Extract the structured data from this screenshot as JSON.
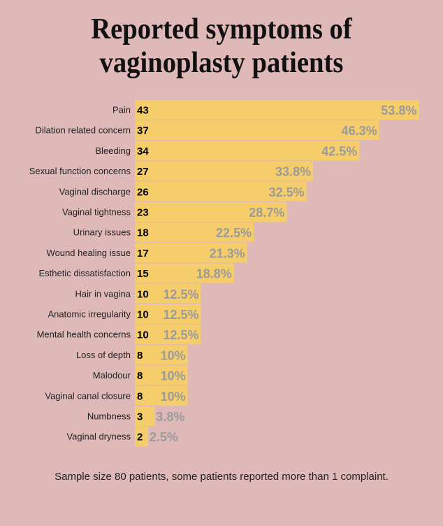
{
  "title_lines": [
    "Reported symptoms of",
    "vaginoplasty patients"
  ],
  "footnote": "Sample size 80 patients, some patients reported more than 1 complaint.",
  "colors": {
    "background": "#dfb8b8",
    "bar": "#f5cd6b",
    "percent_text": "#9b9b9b"
  },
  "chart_data": {
    "type": "bar",
    "orientation": "horizontal",
    "title": "Reported symptoms of vaginoplasty patients",
    "categories": [
      "Pain",
      "Dilation related concern",
      "Bleeding",
      "Sexual function concerns",
      "Vaginal discharge",
      "Vaginal tightness",
      "Urinary issues",
      "Wound healing issue",
      "Esthetic dissatisfaction",
      "Hair in vagina",
      "Anatomic irregularity",
      "Mental health concerns",
      "Loss of depth",
      "Malodour",
      "Vaginal canal closure",
      "Numbness",
      "Vaginal dryness"
    ],
    "counts": [
      43,
      37,
      34,
      27,
      26,
      23,
      18,
      17,
      15,
      10,
      10,
      10,
      8,
      8,
      8,
      3,
      2
    ],
    "percent_labels": [
      "53.8%",
      "46.3%",
      "42.5%",
      "33.8%",
      "32.5%",
      "28.7%",
      "22.5%",
      "21.3%",
      "18.8%",
      "12.5%",
      "12.5%",
      "12.5%",
      "10%",
      "10%",
      "10%",
      "3.8%",
      "2.5%"
    ],
    "grid": false,
    "legend": "none"
  }
}
